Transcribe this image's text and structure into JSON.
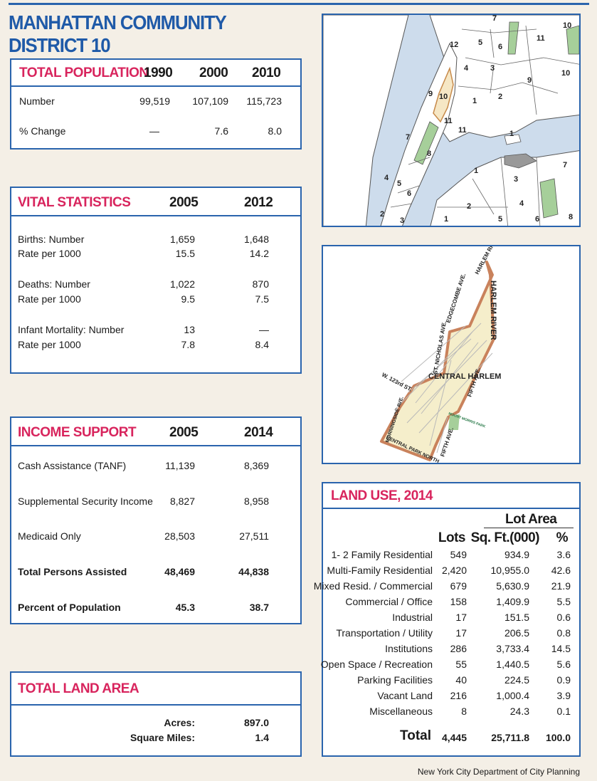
{
  "title": "MANHATTAN COMMUNITY DISTRICT 10",
  "population": {
    "heading": "TOTAL POPULATION",
    "years": [
      "1990",
      "2000",
      "2010"
    ],
    "number_label": "Number",
    "numbers": [
      "99,519",
      "107,109",
      "115,723"
    ],
    "change_label": "% Change",
    "changes": [
      "—",
      "7.6",
      "8.0"
    ]
  },
  "vital": {
    "heading": "VITAL STATISTICS",
    "years": [
      "2005",
      "2012"
    ],
    "births_label": "Births: Number",
    "births_rate_label": "Rate per 1000",
    "births": [
      "1,659",
      "1,648"
    ],
    "births_rate": [
      "15.5",
      "14.2"
    ],
    "deaths_label": "Deaths: Number",
    "deaths_rate_label": "Rate per 1000",
    "deaths": [
      "1,022",
      "870"
    ],
    "deaths_rate": [
      "9.5",
      "7.5"
    ],
    "infant_label": "Infant Mortality: Number",
    "infant_rate_label": "Rate per 1000",
    "infant": [
      "13",
      "—"
    ],
    "infant_rate": [
      "7.8",
      "8.4"
    ]
  },
  "income": {
    "heading": "INCOME SUPPORT",
    "years": [
      "2005",
      "2014"
    ],
    "rows": [
      {
        "label": "Cash Assistance (TANF)",
        "v1": "11,139",
        "v2": "8,369"
      },
      {
        "label": "Supplemental Security Income",
        "v1": "8,827",
        "v2": "8,958"
      },
      {
        "label": "Medicaid Only",
        "v1": "28,503",
        "v2": "27,511"
      },
      {
        "label": "Total Persons Assisted",
        "v1": "48,469",
        "v2": "44,838"
      },
      {
        "label": "Percent of Population",
        "v1": "45.3",
        "v2": "38.7"
      }
    ]
  },
  "land_area": {
    "heading": "TOTAL LAND AREA",
    "acres_label": "Acres:",
    "acres": "897.0",
    "sqmi_label": "Square Miles:",
    "sqmi": "1.4"
  },
  "land_use": {
    "heading": "LAND USE, 2014",
    "lot_area": "Lot Area",
    "col_lots": "Lots",
    "col_sqft": "Sq. Ft.(000)",
    "col_pct": "%",
    "rows": [
      {
        "label": "1- 2 Family Residential",
        "lots": "549",
        "sqft": "934.9",
        "pct": "3.6"
      },
      {
        "label": "Multi-Family Residential",
        "lots": "2,420",
        "sqft": "10,955.0",
        "pct": "42.6"
      },
      {
        "label": "Mixed Resid. / Commercial",
        "lots": "679",
        "sqft": "5,630.9",
        "pct": "21.9"
      },
      {
        "label": "Commercial / Office",
        "lots": "158",
        "sqft": "1,409.9",
        "pct": "5.5"
      },
      {
        "label": "Industrial",
        "lots": "17",
        "sqft": "151.5",
        "pct": "0.6"
      },
      {
        "label": "Transportation / Utility",
        "lots": "17",
        "sqft": "206.5",
        "pct": "0.8"
      },
      {
        "label": "Institutions",
        "lots": "286",
        "sqft": "3,733.4",
        "pct": "14.5"
      },
      {
        "label": "Open Space / Recreation",
        "lots": "55",
        "sqft": "1,440.5",
        "pct": "5.6"
      },
      {
        "label": "Parking Facilities",
        "lots": "40",
        "sqft": "224.5",
        "pct": "0.9"
      },
      {
        "label": "Vacant Land",
        "lots": "216",
        "sqft": "1,000.4",
        "pct": "3.9"
      },
      {
        "label": "Miscellaneous",
        "lots": "8",
        "sqft": "24.3",
        "pct": "0.1"
      }
    ],
    "total_label": "Total",
    "total_lots": "4,445",
    "total_sqft": "25,711.8",
    "total_pct": "100.0"
  },
  "map_overview": {
    "labels": [
      "12",
      "5",
      "6",
      "11",
      "10",
      "4",
      "3",
      "9",
      "10",
      "9",
      "10",
      "1",
      "2",
      "11",
      "11",
      "7",
      "8",
      "1",
      "1",
      "7",
      "3",
      "4",
      "2",
      "4",
      "5",
      "6",
      "1",
      "5",
      "6",
      "8",
      "2",
      "3",
      "7"
    ]
  },
  "map_detail": {
    "harlem_river_dr": "HARLEM RIVER DR.",
    "edgecombe": "EDGECOMBE AVE.",
    "harlem_river": "HARLEM RIVER",
    "st_nicholas": "ST. NICHOLAS AVE.",
    "w123": "W. 123rd ST.",
    "central_harlem": "CENTRAL HARLEM",
    "fifth_ave_top": "FIFTH AVE.",
    "morningside": "MORNINGSIDE AVE.",
    "mount_morris": "MOUNT MORRIS PARK",
    "cpn": "CENTRAL PARK NORTH",
    "fifth_ave_bottom": "FIFTH AVE."
  },
  "credit": "New York City Department of City Planning",
  "colors": {
    "accent": "#2a64ad",
    "heading": "#d8245d",
    "district": "#f5eecb",
    "park": "#a6cf9a"
  }
}
